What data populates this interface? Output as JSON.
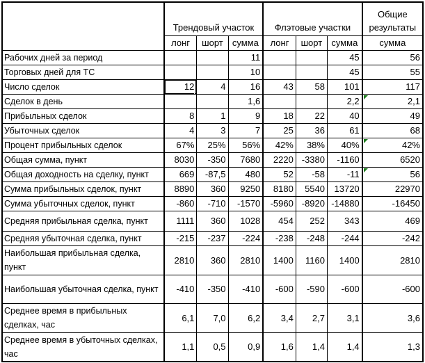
{
  "table": {
    "corner_label": "",
    "column_groups": [
      {
        "label": "Трендовый участок",
        "columns": [
          "лонг",
          "шорт",
          "сумма"
        ]
      },
      {
        "label": "Флэтовые участки",
        "columns": [
          "лонг",
          "шорт",
          "сумма"
        ]
      },
      {
        "label": "Общие результаты",
        "columns": [
          "сумма"
        ]
      }
    ],
    "rows": [
      {
        "label": "Рабочих дней за период",
        "values": [
          "",
          "",
          "11",
          "",
          "",
          "45",
          "56"
        ]
      },
      {
        "label": "Торговых дней для ТС",
        "values": [
          "",
          "",
          "10",
          "",
          "",
          "45",
          "55"
        ]
      },
      {
        "label": "Число сделок",
        "values": [
          "12",
          "4",
          "16",
          "43",
          "58",
          "101",
          "117"
        ]
      },
      {
        "label": "Сделок в день",
        "values": [
          "",
          "",
          "1,6",
          "",
          "",
          "2,2",
          "2,1"
        ]
      },
      {
        "label": "Прибыльных сделок",
        "values": [
          "8",
          "1",
          "9",
          "18",
          "22",
          "40",
          "49"
        ]
      },
      {
        "label": "Убыточных сделок",
        "values": [
          "4",
          "3",
          "7",
          "25",
          "36",
          "61",
          "68"
        ]
      },
      {
        "label": "Процент прибыльных сделок",
        "values": [
          "67%",
          "25%",
          "56%",
          "42%",
          "38%",
          "40%",
          "42%"
        ]
      },
      {
        "label": "Общая сумма, пункт",
        "values": [
          "8030",
          "-350",
          "7680",
          "2220",
          "-3380",
          "-1160",
          "6520"
        ]
      },
      {
        "label": "Общая доходность на сделку, пункт",
        "values": [
          "669",
          "-87,5",
          "480",
          "52",
          "-58",
          "-11",
          "56"
        ]
      },
      {
        "label": "Сумма прибыльных сделок, пункт",
        "values": [
          "8890",
          "360",
          "9250",
          "8180",
          "5540",
          "13720",
          "22970"
        ]
      },
      {
        "label": "Сумма убыточных сделок, пункт",
        "values": [
          "-860",
          "-710",
          "-1570",
          "-5960",
          "-8920",
          "-14880",
          "-16450"
        ]
      },
      {
        "label": "Средняя прибыльная сделка, пункт",
        "values": [
          "1111",
          "360",
          "1028",
          "454",
          "252",
          "343",
          "469"
        ]
      },
      {
        "label": "Средняя убыточная сделка, пункт",
        "values": [
          "-215",
          "-237",
          "-224",
          "-238",
          "-248",
          "-244",
          "-242"
        ]
      },
      {
        "label": "Наибольшая прибыльная сделка, пункт",
        "values": [
          "2810",
          "360",
          "2810",
          "1400",
          "1160",
          "1400",
          "2810"
        ]
      },
      {
        "label": "Наибольшая убыточная сделка, пункт",
        "values": [
          "-410",
          "-350",
          "-410",
          "-600",
          "-590",
          "-600",
          "-600"
        ]
      },
      {
        "label": "Среднее время в прибыльных сделках, час",
        "values": [
          "6,1",
          "7,0",
          "6,2",
          "3,4",
          "2,7",
          "3,1",
          "3,6"
        ]
      },
      {
        "label": "Среднее время в убыточных сделках, час",
        "values": [
          "1,1",
          "0,5",
          "0,9",
          "1,6",
          "1,4",
          "1,4",
          "1,3"
        ]
      }
    ],
    "state": {
      "selected_cell": {
        "row_index": 2,
        "col_index": 0,
        "value": "12"
      },
      "error_indicator_cells": [
        {
          "row_index": 3,
          "col_index": 6
        },
        {
          "row_index": 6,
          "col_index": 6
        },
        {
          "row_index": 8,
          "col_index": 6
        }
      ]
    },
    "colors": {
      "grid": "#000000",
      "error_indicator": "#1e7e1e",
      "background": "#ffffff"
    }
  }
}
